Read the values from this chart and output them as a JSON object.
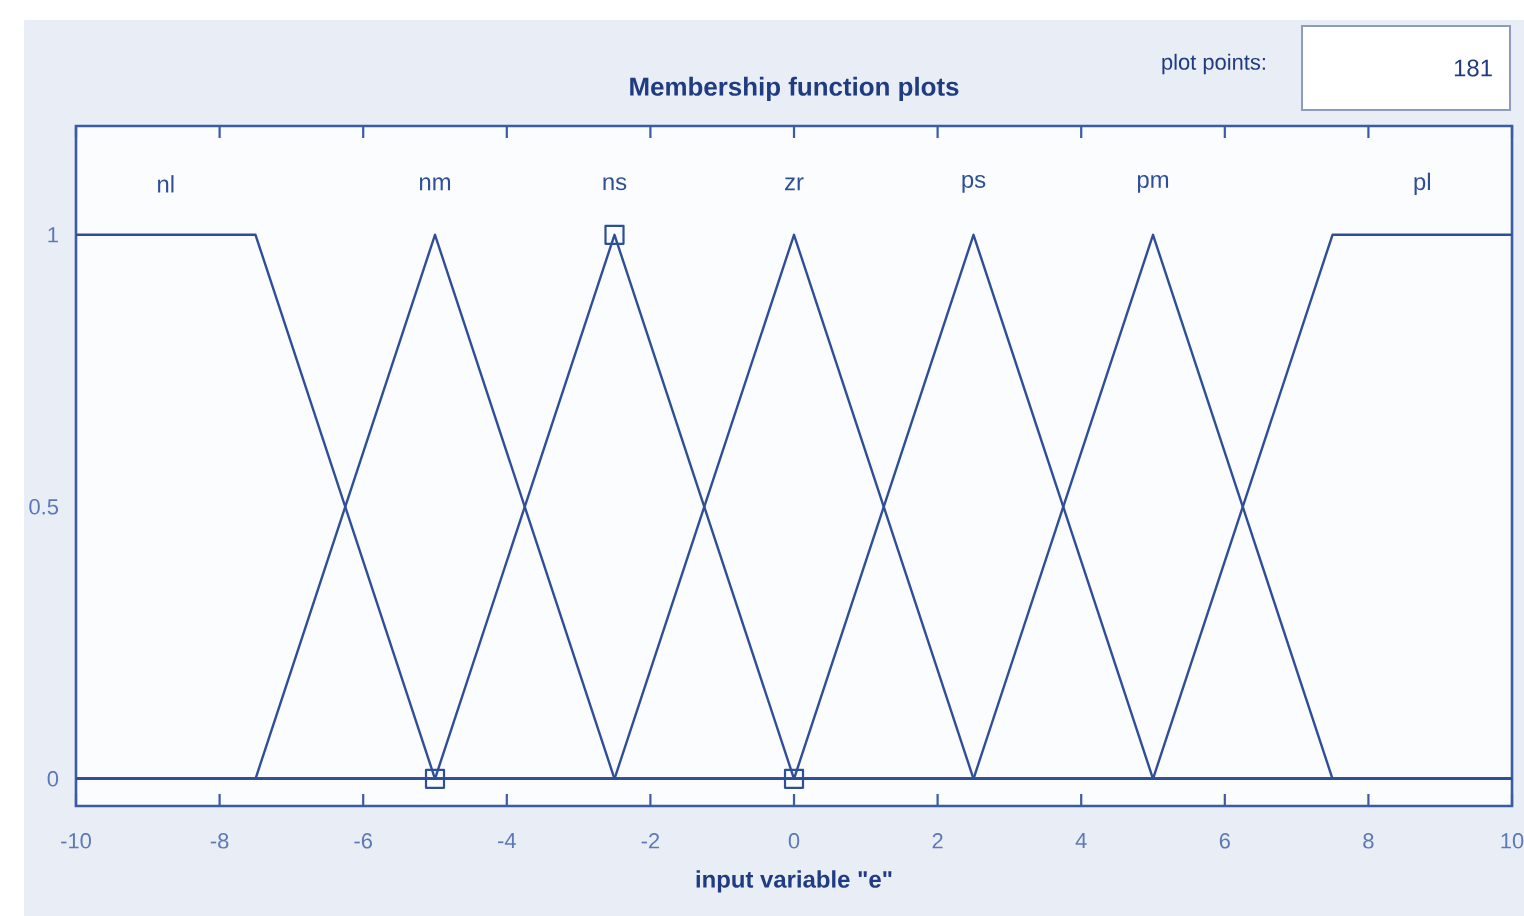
{
  "chart_data": {
    "type": "line",
    "title": "Membership function plots",
    "xlabel": "input variable \"e\"",
    "xlim": [
      -10,
      10
    ],
    "xticks": [
      -10,
      -8,
      -6,
      -4,
      -2,
      0,
      2,
      4,
      6,
      8,
      10
    ],
    "ylim": [
      -0.05,
      1.2
    ],
    "yticks": [
      0,
      0.5,
      1
    ],
    "marker": "none",
    "line_style": "solid",
    "annotations": [
      "plot points:",
      "181"
    ],
    "series": [
      {
        "name": "nl",
        "color": "#2e4f98",
        "x": [
          -10,
          -7.5,
          -5,
          10
        ],
        "values": [
          1,
          1,
          0,
          0
        ]
      },
      {
        "name": "nm",
        "color": "#2e4f98",
        "x": [
          -10,
          -7.5,
          -5,
          -2.5,
          10
        ],
        "values": [
          0,
          0,
          1,
          0,
          0
        ]
      },
      {
        "name": "ns",
        "color": "#2e4f98",
        "x": [
          -10,
          -5,
          -2.5,
          0,
          10
        ],
        "values": [
          0,
          0,
          1,
          0,
          0
        ]
      },
      {
        "name": "zr",
        "color": "#2e4f98",
        "x": [
          -10,
          -2.5,
          0,
          2.5,
          10
        ],
        "values": [
          0,
          0,
          1,
          0,
          0
        ]
      },
      {
        "name": "ps",
        "color": "#2e4f98",
        "x": [
          -10,
          0,
          2.5,
          5,
          10
        ],
        "values": [
          0,
          0,
          1,
          0,
          0
        ]
      },
      {
        "name": "pm",
        "color": "#2e4f98",
        "x": [
          -10,
          2.5,
          5,
          7.5,
          10
        ],
        "values": [
          0,
          0,
          1,
          0,
          0
        ]
      },
      {
        "name": "pl",
        "color": "#2e4f98",
        "x": [
          -10,
          5,
          7.5,
          10
        ],
        "values": [
          0,
          0,
          1,
          1
        ]
      },
      {
        "type": "scatter",
        "marker": "square",
        "color": "#2e4f98",
        "x": [
          -5,
          -2.5,
          0
        ],
        "values": [
          0,
          1,
          0
        ]
      }
    ]
  }
}
